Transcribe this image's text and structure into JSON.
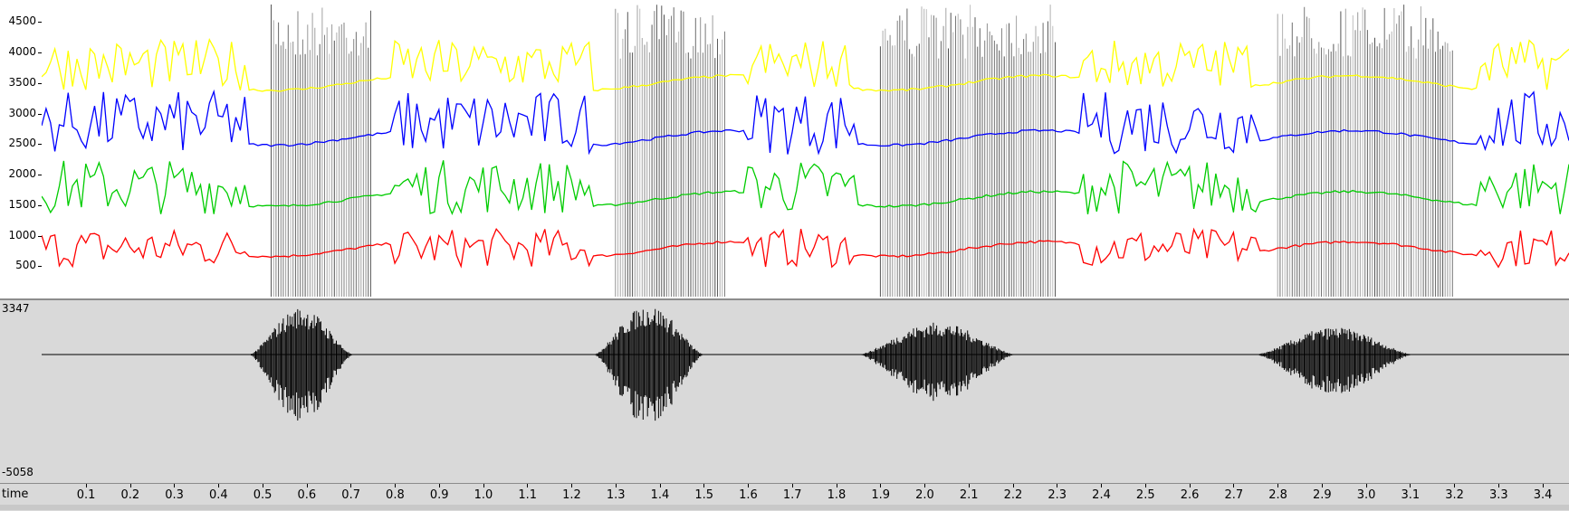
{
  "formants": {
    "y_axis": {
      "ticks": [
        "500",
        "1000",
        "1500",
        "2000",
        "2500",
        "3000",
        "3500",
        "4000",
        "4500"
      ],
      "min": 0,
      "max": 4800
    },
    "colors": {
      "f1": "#ff0000",
      "f2": "#00cc00",
      "f3": "#0000ff",
      "f4": "#ffff00",
      "spectrogram": "#000000"
    }
  },
  "waveform": {
    "y_max_label": "3347",
    "y_min_label": "-5058",
    "color": "#000000",
    "segments": [
      {
        "start": 0.47,
        "end": 0.8,
        "peak": 0.95
      },
      {
        "start": 1.25,
        "end": 1.6,
        "peak": 1.0
      },
      {
        "start": 1.85,
        "end": 2.35,
        "peak": 0.65
      },
      {
        "start": 2.75,
        "end": 3.25,
        "peak": 0.55
      }
    ]
  },
  "time_axis": {
    "title": "time",
    "ticks": [
      "0.1",
      "0.2",
      "0.3",
      "0.4",
      "0.5",
      "0.6",
      "0.7",
      "0.8",
      "0.9",
      "1.0",
      "1.1",
      "1.2",
      "1.3",
      "1.4",
      "1.5",
      "1.6",
      "1.7",
      "1.8",
      "1.9",
      "2.0",
      "2.1",
      "2.2",
      "2.3",
      "2.4",
      "2.5",
      "2.6",
      "2.7",
      "2.8",
      "2.9",
      "3.0",
      "3.1",
      "3.2",
      "3.3",
      "3.4"
    ],
    "start": 0.0,
    "end": 3.46
  }
}
